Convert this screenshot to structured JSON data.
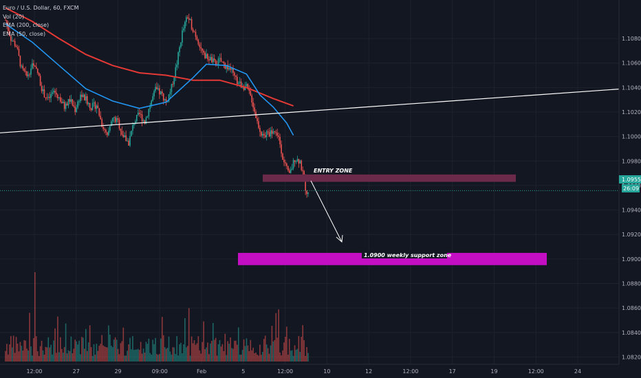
{
  "legend": {
    "symbol": "Euro / U.S. Dollar, 60, FXCM",
    "volume": "Vol (20)",
    "ema200": "EMA (200, close)",
    "ema50": "EMA (50, close)"
  },
  "annotations": {
    "entry_zone": "ENTRY ZONE",
    "support_zone": "1.0900 weekly support zone"
  },
  "price_tag": {
    "price": "1.09558",
    "countdown": "26:09"
  },
  "colors": {
    "background": "#131722",
    "up": "#26a69a",
    "down": "#ef5350",
    "ema200": "#e53935",
    "ema50": "#2196f3",
    "trendline": "#ffffff",
    "entry_zone": "#6b2a4a",
    "support_zone": "#c40ec4",
    "current_price": "#26a69a"
  },
  "chart_data": {
    "type": "candlestick",
    "title": "Euro / U.S. Dollar, 60, FXCM",
    "y_ticks": [
      "1.10800",
      "1.10600",
      "1.10400",
      "1.10200",
      "1.10000",
      "1.09800",
      "1.09600",
      "1.09400",
      "1.09200",
      "1.09000",
      "1.08800",
      "1.08600",
      "1.08400",
      "1.08200"
    ],
    "ylim": [
      1.0818,
      1.1098
    ],
    "x_ticks": [
      "12:00",
      "27",
      "29",
      "09:00",
      "Feb",
      "5",
      "12:00",
      "10",
      "12",
      "12:00",
      "17",
      "19",
      "12:00",
      "24"
    ],
    "price_path": [
      [
        0,
        1.1095
      ],
      [
        4,
        1.108
      ],
      [
        8,
        1.1074
      ],
      [
        12,
        1.1055
      ],
      [
        16,
        1.1049
      ],
      [
        20,
        1.1058
      ],
      [
        24,
        1.1052
      ],
      [
        28,
        1.1036
      ],
      [
        32,
        1.103
      ],
      [
        36,
        1.1037
      ],
      [
        40,
        1.1032
      ],
      [
        44,
        1.1024
      ],
      [
        48,
        1.103
      ],
      [
        52,
        1.1022
      ],
      [
        56,
        1.1034
      ],
      [
        60,
        1.103
      ],
      [
        64,
        1.1024
      ],
      [
        68,
        1.1026
      ],
      [
        72,
        1.101
      ],
      [
        76,
        1.0999
      ],
      [
        80,
        1.1015
      ],
      [
        84,
        1.1012
      ],
      [
        88,
        1.1
      ],
      [
        92,
        1.0995
      ],
      [
        96,
        1.1012
      ],
      [
        100,
        1.1018
      ],
      [
        104,
        1.1012
      ],
      [
        108,
        1.1026
      ],
      [
        112,
        1.1038
      ],
      [
        116,
        1.1035
      ],
      [
        120,
        1.1028
      ],
      [
        124,
        1.104
      ],
      [
        128,
        1.106
      ],
      [
        132,
        1.1085
      ],
      [
        136,
        1.1098
      ],
      [
        140,
        1.1088
      ],
      [
        144,
        1.1078
      ],
      [
        148,
        1.1066
      ],
      [
        152,
        1.1064
      ],
      [
        156,
        1.106
      ],
      [
        160,
        1.1062
      ],
      [
        164,
        1.1058
      ],
      [
        168,
        1.1055
      ],
      [
        172,
        1.1046
      ],
      [
        176,
        1.1042
      ],
      [
        180,
        1.104
      ],
      [
        184,
        1.103
      ],
      [
        188,
        1.1012
      ],
      [
        192,
        1.1
      ],
      [
        196,
        1.1002
      ],
      [
        200,
        1.1005
      ],
      [
        204,
        1.1
      ],
      [
        208,
        1.0978
      ],
      [
        212,
        1.0968
      ],
      [
        216,
        1.0982
      ],
      [
        220,
        1.098
      ],
      [
        224,
        1.0958
      ],
      [
        226,
        1.0952
      ]
    ],
    "ema200": [
      [
        0,
        1.1105
      ],
      [
        20,
        1.1094
      ],
      [
        40,
        1.108
      ],
      [
        60,
        1.1067
      ],
      [
        80,
        1.1058
      ],
      [
        100,
        1.1052
      ],
      [
        120,
        1.105
      ],
      [
        140,
        1.1046
      ],
      [
        160,
        1.1046
      ],
      [
        180,
        1.104
      ],
      [
        200,
        1.1031
      ],
      [
        215,
        1.1025
      ]
    ],
    "ema50": [
      [
        0,
        1.1092
      ],
      [
        20,
        1.1077
      ],
      [
        40,
        1.1058
      ],
      [
        60,
        1.1039
      ],
      [
        80,
        1.1029
      ],
      [
        100,
        1.1023
      ],
      [
        120,
        1.1028
      ],
      [
        140,
        1.1048
      ],
      [
        150,
        1.1059
      ],
      [
        165,
        1.1058
      ],
      [
        180,
        1.1051
      ],
      [
        190,
        1.1034
      ],
      [
        200,
        1.1024
      ],
      [
        210,
        1.1011
      ],
      [
        215,
        1.1001
      ]
    ],
    "current_price": 1.09558,
    "entry_zone": [
      1.0963,
      1.0969
    ],
    "support_zone": [
      1.0895,
      1.0905
    ],
    "trendline": [
      [
        0,
        1.1003
      ],
      [
        932,
        1.104
      ]
    ],
    "volume_peak_index": 22
  }
}
